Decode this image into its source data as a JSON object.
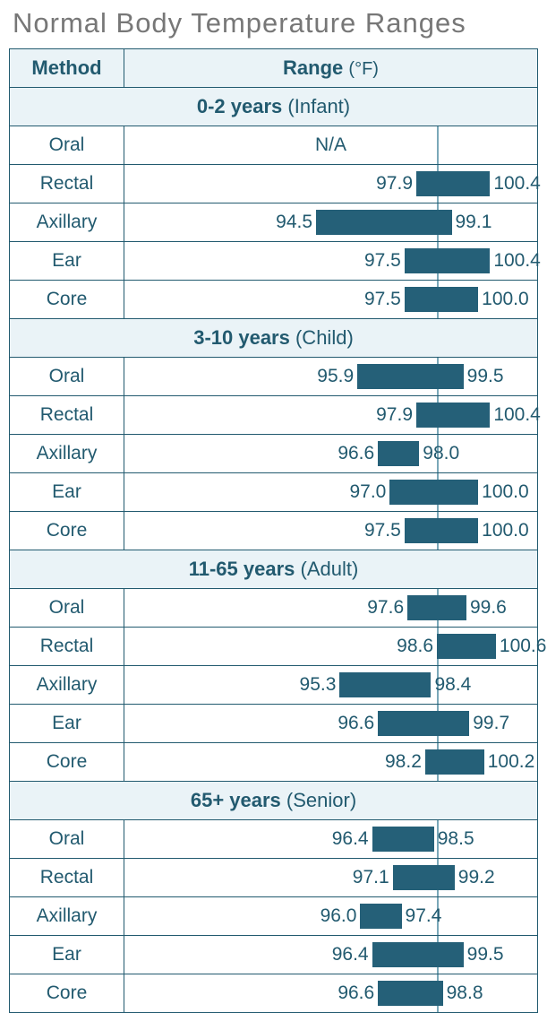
{
  "title": "Normal Body Temperature Ranges",
  "header": {
    "method": "Method",
    "range": "Range",
    "unit": "(°F)"
  },
  "scale": {
    "min": 88,
    "max": 102,
    "midline": 98.6
  },
  "colors": {
    "border": "#225a6f",
    "bar": "#256078",
    "header_bg": "#eaf3f7",
    "text": "#225a6f",
    "midline": "#7aa8b8",
    "title": "#777777"
  },
  "groups": [
    {
      "age": "0-2 years",
      "label": "(Infant)",
      "rows": [
        {
          "method": "Oral",
          "na": "N/A"
        },
        {
          "method": "Rectal",
          "lo": 97.9,
          "hi": 100.4
        },
        {
          "method": "Axillary",
          "lo": 94.5,
          "hi": 99.1
        },
        {
          "method": "Ear",
          "lo": 97.5,
          "hi": 100.4
        },
        {
          "method": "Core",
          "lo": 97.5,
          "hi": 100.0
        }
      ]
    },
    {
      "age": "3-10 years",
      "label": "(Child)",
      "rows": [
        {
          "method": "Oral",
          "lo": 95.9,
          "hi": 99.5
        },
        {
          "method": "Rectal",
          "lo": 97.9,
          "hi": 100.4
        },
        {
          "method": "Axillary",
          "lo": 96.6,
          "hi": 98.0
        },
        {
          "method": "Ear",
          "lo": 97.0,
          "hi": 100.0
        },
        {
          "method": "Core",
          "lo": 97.5,
          "hi": 100.0
        }
      ]
    },
    {
      "age": "11-65 years",
      "label": "(Adult)",
      "rows": [
        {
          "method": "Oral",
          "lo": 97.6,
          "hi": 99.6
        },
        {
          "method": "Rectal",
          "lo": 98.6,
          "hi": 100.6
        },
        {
          "method": "Axillary",
          "lo": 95.3,
          "hi": 98.4
        },
        {
          "method": "Ear",
          "lo": 96.6,
          "hi": 99.7
        },
        {
          "method": "Core",
          "lo": 98.2,
          "hi": 100.2
        }
      ]
    },
    {
      "age": "65+ years",
      "label": "(Senior)",
      "rows": [
        {
          "method": "Oral",
          "lo": 96.4,
          "hi": 98.5
        },
        {
          "method": "Rectal",
          "lo": 97.1,
          "hi": 99.2
        },
        {
          "method": "Axillary",
          "lo": 96.0,
          "hi": 97.4
        },
        {
          "method": "Ear",
          "lo": 96.4,
          "hi": 99.5
        },
        {
          "method": "Core",
          "lo": 96.6,
          "hi": 98.8
        }
      ]
    }
  ]
}
